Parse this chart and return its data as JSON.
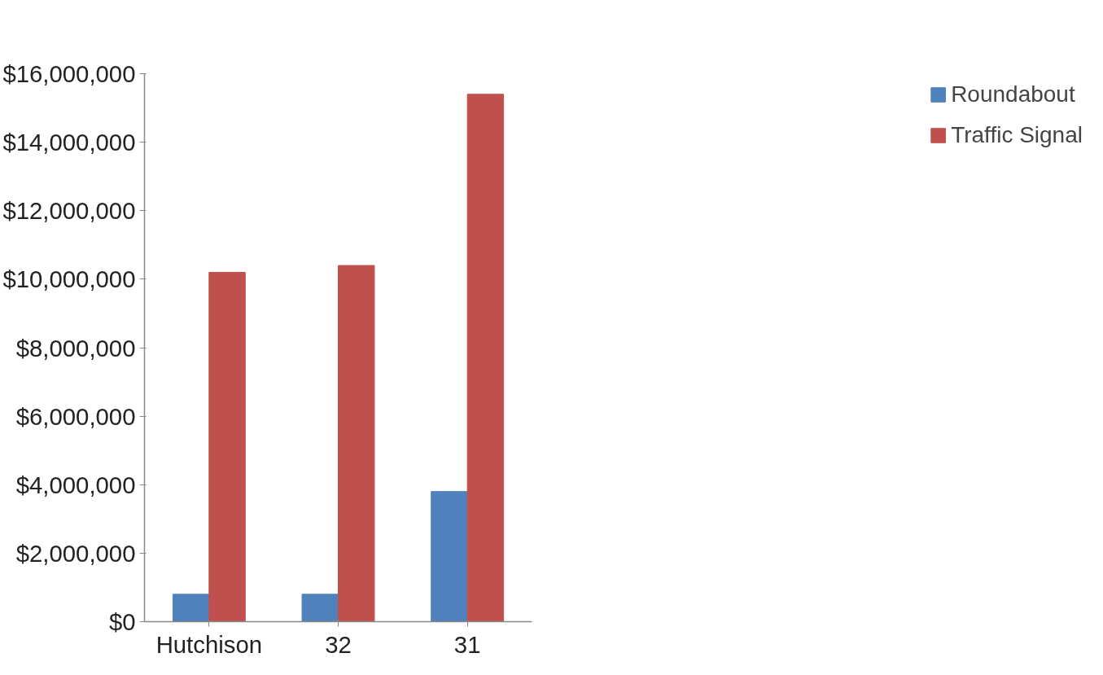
{
  "chart_data": {
    "type": "bar",
    "categories": [
      "Hutchison",
      "32",
      "31"
    ],
    "series": [
      {
        "name": "Roundabout",
        "color": "#4f81bd",
        "values": [
          800000,
          800000,
          3800000
        ]
      },
      {
        "name": "Traffic Signal",
        "color": "#c0504d",
        "values": [
          10200000,
          10400000,
          15400000
        ]
      }
    ],
    "ylim": [
      0,
      16000000
    ],
    "yticks": [
      {
        "value": 0,
        "label": "$0"
      },
      {
        "value": 2000000,
        "label": "$2,000,000"
      },
      {
        "value": 4000000,
        "label": "$4,000,000"
      },
      {
        "value": 6000000,
        "label": "$6,000,000"
      },
      {
        "value": 8000000,
        "label": "$8,000,000"
      },
      {
        "value": 10000000,
        "label": "$10,000,000"
      },
      {
        "value": 12000000,
        "label": "$12,000,000"
      },
      {
        "value": 14000000,
        "label": "$14,000,000"
      },
      {
        "value": 16000000,
        "label": "$16,000,000"
      }
    ],
    "grid": false,
    "legend": "right"
  }
}
